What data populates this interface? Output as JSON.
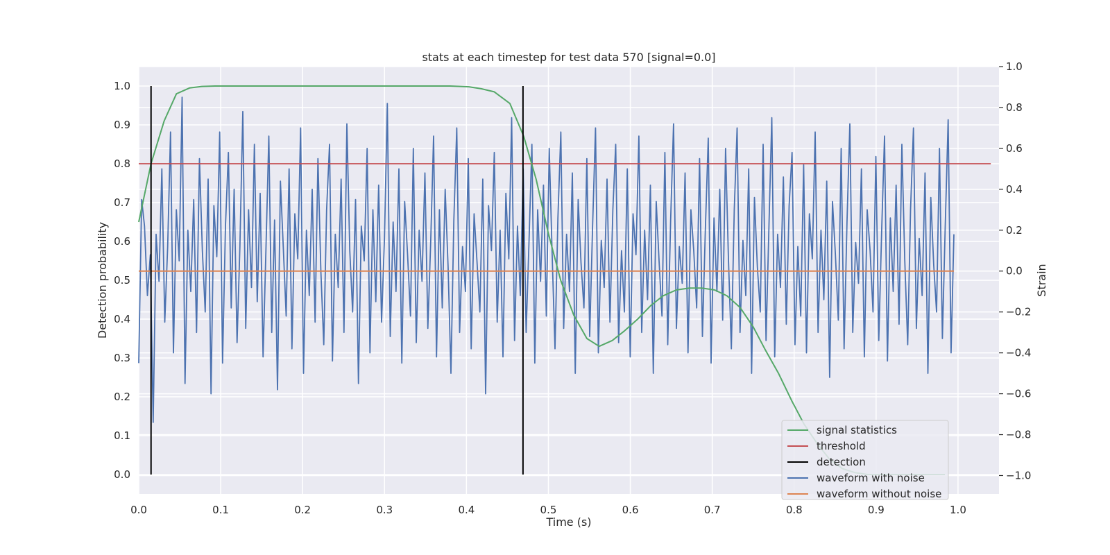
{
  "chart_data": {
    "type": "line",
    "title": "stats at each timestep for test data 570 [signal=0.0]",
    "xlabel": "Time (s)",
    "ylabel": "Detection probability",
    "ylabel_right": "Strain",
    "xlim": [
      0.0,
      1.05
    ],
    "ylim": [
      -0.05,
      1.05
    ],
    "ylim_right": [
      -1.09,
      1.0
    ],
    "x_ticks": [
      0.0,
      0.1,
      0.2,
      0.3,
      0.4,
      0.5,
      0.6,
      0.7,
      0.8,
      0.9,
      1.0
    ],
    "y_ticks": [
      0.0,
      0.1,
      0.2,
      0.3,
      0.4,
      0.5,
      0.6,
      0.7,
      0.8,
      0.9,
      1.0
    ],
    "y_ticks_right": [
      -1.0,
      -0.8,
      -0.6,
      -0.4,
      -0.2,
      0.0,
      0.2,
      0.4,
      0.6,
      0.8,
      1.0
    ],
    "x_tick_labels": [
      "0.0",
      "0.1",
      "0.2",
      "0.3",
      "0.4",
      "0.5",
      "0.6",
      "0.7",
      "0.8",
      "0.9",
      "1.0"
    ],
    "y_tick_labels": [
      "0.0",
      "0.1",
      "0.2",
      "0.3",
      "0.4",
      "0.5",
      "0.6",
      "0.7",
      "0.8",
      "0.9",
      "1.0"
    ],
    "y_tick_labels_right": [
      "−1.0",
      "−0.8",
      "−0.6",
      "−0.4",
      "−0.2",
      "0.0",
      "0.2",
      "0.4",
      "0.6",
      "0.8",
      "1.0"
    ],
    "grid": true,
    "legend_position": "lower-right",
    "background": "#eaeaf2",
    "series": [
      {
        "name": "signal statistics",
        "color": "#55a868",
        "axis": "left",
        "x": [
          0.0,
          0.015,
          0.031,
          0.046,
          0.062,
          0.077,
          0.093,
          0.2,
          0.3,
          0.38,
          0.403,
          0.418,
          0.434,
          0.453,
          0.47,
          0.485,
          0.5,
          0.515,
          0.531,
          0.547,
          0.562,
          0.578,
          0.593,
          0.609,
          0.625,
          0.64,
          0.656,
          0.672,
          0.687,
          0.703,
          0.718,
          0.734,
          0.75,
          0.765,
          0.781,
          0.797,
          0.812,
          0.828,
          0.843,
          0.859,
          0.874,
          0.89,
          0.906,
          0.921,
          0.937,
          0.952,
          0.968,
          0.984
        ],
        "y": [
          0.65,
          0.8,
          0.91,
          0.98,
          0.995,
          0.999,
          1.0,
          1.0,
          1.0,
          1.0,
          0.998,
          0.993,
          0.985,
          0.955,
          0.87,
          0.76,
          0.62,
          0.5,
          0.41,
          0.35,
          0.33,
          0.345,
          0.37,
          0.4,
          0.435,
          0.46,
          0.475,
          0.48,
          0.48,
          0.475,
          0.46,
          0.43,
          0.38,
          0.32,
          0.26,
          0.19,
          0.13,
          0.08,
          0.04,
          0.015,
          0.005,
          0.0,
          0.0,
          0.0,
          0.0,
          0.0,
          0.0,
          0.0
        ]
      },
      {
        "name": "threshold",
        "color": "#c44e52",
        "axis": "left",
        "x": [
          0.0,
          1.04
        ],
        "y": [
          0.8,
          0.8
        ]
      },
      {
        "name": "detection",
        "color": "#000000",
        "axis": "left",
        "x_lines": [
          0.015,
          0.469
        ],
        "y": [
          0.0,
          1.0
        ]
      },
      {
        "name": "waveform with noise",
        "color": "#4c72b0",
        "axis": "right",
        "x_start": 0.0,
        "x_end": 0.995,
        "y": [
          -0.45,
          0.35,
          0.22,
          -0.12,
          0.08,
          -0.74,
          0.18,
          -0.05,
          0.5,
          -0.25,
          0.12,
          0.68,
          -0.4,
          0.3,
          0.05,
          0.85,
          -0.55,
          0.2,
          -0.1,
          0.35,
          -0.3,
          0.55,
          0.1,
          -0.2,
          0.45,
          -0.6,
          0.32,
          0.07,
          0.68,
          -0.45,
          0.22,
          0.58,
          -0.18,
          0.4,
          -0.35,
          0.12,
          0.78,
          -0.28,
          0.3,
          -0.08,
          0.62,
          -0.15,
          0.38,
          -0.42,
          0.1,
          0.66,
          -0.3,
          0.25,
          -0.58,
          0.44,
          0.12,
          -0.22,
          0.5,
          -0.38,
          0.28,
          0.06,
          0.7,
          -0.5,
          0.2,
          -0.12,
          0.4,
          -0.25,
          0.55,
          0.0,
          -0.36,
          0.3,
          0.62,
          -0.44,
          0.18,
          -0.08,
          0.45,
          -0.3,
          0.72,
          0.1,
          -0.2,
          0.35,
          -0.55,
          0.22,
          0.05,
          0.6,
          -0.4,
          0.3,
          -0.15,
          0.42,
          -0.25,
          0.16,
          0.82,
          -0.32,
          0.24,
          -0.1,
          0.5,
          -0.45,
          0.34,
          0.08,
          -0.22,
          0.6,
          -0.35,
          0.2,
          -0.05,
          0.48,
          -0.28,
          0.15,
          0.66,
          -0.42,
          0.3,
          -0.18,
          0.4,
          0.02,
          -0.5,
          0.25,
          0.7,
          -0.3,
          0.12,
          -0.1,
          0.55,
          -0.38,
          0.28,
          0.05,
          -0.2,
          0.45,
          -0.6,
          0.32,
          0.1,
          0.58,
          -0.25,
          0.2,
          -0.42,
          0.38,
          0.06,
          0.75,
          -0.34,
          0.22,
          -0.12,
          0.5,
          -0.3,
          0.14,
          0.62,
          -0.45,
          0.3,
          -0.05,
          0.42,
          -0.22,
          0.6,
          0.08,
          -0.38,
          0.26,
          0.68,
          -0.28,
          0.18,
          -0.1,
          0.48,
          -0.5,
          0.35,
          0.04,
          -0.18,
          0.55,
          -0.32,
          0.22,
          0.7,
          -0.4,
          0.15,
          -0.08,
          0.45,
          -0.25,
          0.3,
          0.62,
          -0.35,
          0.1,
          -0.2,
          0.5,
          -0.42,
          0.28,
          0.08,
          0.66,
          -0.3,
          0.2,
          -0.14,
          0.42,
          -0.5,
          0.34,
          0.05,
          -0.22,
          0.58,
          -0.36,
          0.25,
          0.72,
          -0.28,
          0.12,
          -0.06,
          0.48,
          -0.4,
          0.3,
          0.1,
          -0.18,
          0.55,
          -0.32,
          0.2,
          0.65,
          -0.45,
          0.26,
          -0.1,
          0.4,
          -0.24,
          0.6,
          0.06,
          -0.38,
          0.3,
          0.7,
          -0.3,
          0.15,
          -0.12,
          0.5,
          -0.5,
          0.36,
          0.02,
          -0.2,
          0.62,
          -0.34,
          0.22,
          0.75,
          -0.42,
          0.18,
          -0.08,
          0.46,
          -0.26,
          0.32,
          0.58,
          -0.36,
          0.12,
          -0.22,
          0.52,
          -0.4,
          0.28,
          0.06,
          0.68,
          -0.3,
          0.2,
          -0.14,
          0.44,
          -0.52,
          0.34,
          0.08,
          -0.24,
          0.6,
          -0.38,
          0.24,
          0.72,
          -0.3,
          0.14,
          -0.06,
          0.5,
          -0.42,
          0.3,
          0.1,
          -0.2,
          0.56,
          -0.34,
          0.2,
          0.66,
          -0.44,
          0.26,
          -0.1,
          0.42,
          -0.26,
          0.62,
          0.05,
          -0.36,
          0.3,
          0.7,
          -0.28,
          0.16,
          -0.12,
          0.48,
          -0.5,
          0.36,
          0.03,
          -0.2,
          0.6,
          -0.33,
          0.22,
          0.74,
          -0.4,
          0.18
        ]
      },
      {
        "name": "waveform without noise",
        "color": "#dd8452",
        "axis": "right",
        "x": [
          0.0,
          0.995
        ],
        "y": [
          0.0,
          0.0
        ]
      }
    ]
  }
}
